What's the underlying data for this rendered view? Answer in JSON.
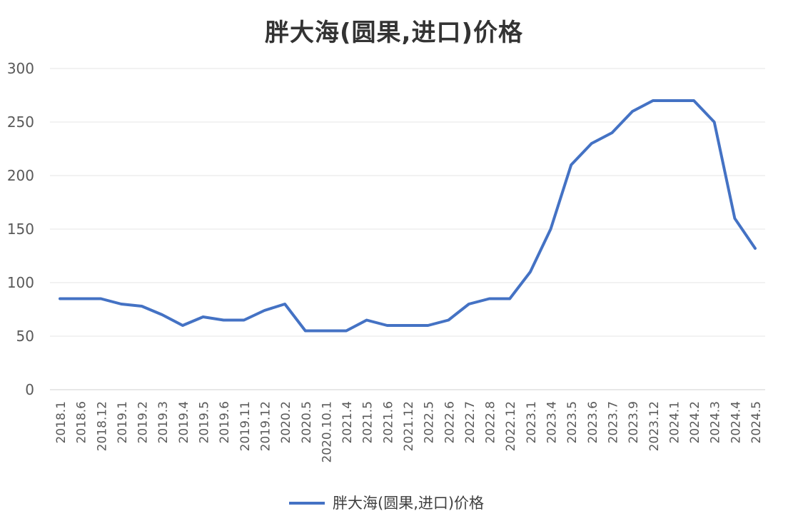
{
  "chart_data": {
    "type": "line",
    "title": "胖大海(圆果,进口)价格",
    "xlabel": "",
    "ylabel": "",
    "categories": [
      "2018.1",
      "2018.6",
      "2018.12",
      "2019.1",
      "2019.2",
      "2019.3",
      "2019.4",
      "2019.5",
      "2019.6",
      "2019.11",
      "2019.12",
      "2020.2",
      "2020.5",
      "2020.10.1",
      "2021.4",
      "2021.5",
      "2021.6",
      "2021.12",
      "2022.5",
      "2022.6",
      "2022.7",
      "2022.8",
      "2022.12",
      "2023.1",
      "2023.4",
      "2023.5",
      "2023.6",
      "2023.7",
      "2023.9",
      "2023.12",
      "2024.1",
      "2024.2",
      "2024.3",
      "2024.4",
      "2024.5"
    ],
    "series": [
      {
        "name": "胖大海(圆果,进口)价格",
        "color": "#4472C4",
        "values": [
          85,
          85,
          85,
          80,
          78,
          70,
          60,
          68,
          65,
          65,
          74,
          80,
          55,
          55,
          55,
          65,
          60,
          60,
          60,
          65,
          80,
          85,
          85,
          110,
          150,
          210,
          230,
          240,
          260,
          270,
          270,
          270,
          250,
          160,
          132
        ]
      }
    ],
    "ylim": [
      0,
      300
    ],
    "yticks": [
      0,
      50,
      100,
      150,
      200,
      250,
      300
    ],
    "grid": true,
    "legend_position": "bottom"
  }
}
